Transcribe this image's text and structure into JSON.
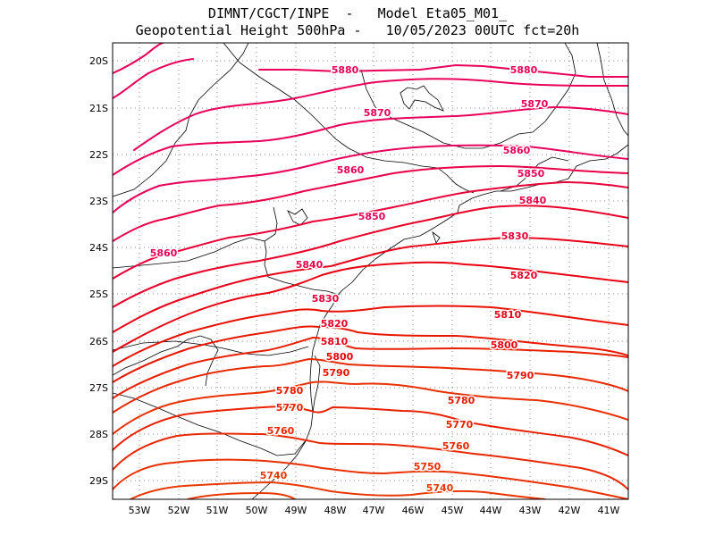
{
  "title": {
    "line1": "DIMNT/CGCT/INPE  -   Model Eta05_M01_",
    "line2": "Geopotential Height 500hPa -   10/05/2023 00UTC fct=20h"
  },
  "map": {
    "lon_labels": [
      "53W",
      "52W",
      "51W",
      "50W",
      "49W",
      "48W",
      "47W",
      "46W",
      "45W",
      "44W",
      "43W",
      "42W",
      "41W"
    ],
    "lat_labels": [
      "20S",
      "21S",
      "22S",
      "23S",
      "24S",
      "25S",
      "26S",
      "27S",
      "28S",
      "29S"
    ]
  },
  "contours": [
    {
      "value": "5880",
      "color": "#e8005a"
    },
    {
      "value": "5870",
      "color": "#e8005a"
    },
    {
      "value": "5860",
      "color": "#e8005a"
    },
    {
      "value": "5850",
      "color": "#e8005a"
    },
    {
      "value": "5840",
      "color": "#e80048"
    },
    {
      "value": "5830",
      "color": "#e80038"
    },
    {
      "value": "5820",
      "color": "#e80028"
    },
    {
      "value": "5810",
      "color": "#e80018"
    },
    {
      "value": "5800",
      "color": "#e80010"
    },
    {
      "value": "5790",
      "color": "#e81000"
    },
    {
      "value": "5780",
      "color": "#e81800"
    },
    {
      "value": "5770",
      "color": "#e82000"
    },
    {
      "value": "5760",
      "color": "#e82800"
    },
    {
      "value": "5750",
      "color": "#e83000"
    },
    {
      "value": "5740",
      "color": "#e83800"
    }
  ],
  "contour_labels": [
    {
      "text": "5880",
      "color": "#e8005a"
    },
    {
      "text": "5880",
      "color": "#e8005a"
    },
    {
      "text": "5870",
      "color": "#e8005a"
    },
    {
      "text": "5870",
      "color": "#e8005a"
    },
    {
      "text": "5860",
      "color": "#e8005a"
    },
    {
      "text": "5860",
      "color": "#e8005a"
    },
    {
      "text": "5860",
      "color": "#e8005a"
    },
    {
      "text": "5850",
      "color": "#e8005a"
    },
    {
      "text": "5850",
      "color": "#e8005a"
    },
    {
      "text": "5840",
      "color": "#e80048"
    },
    {
      "text": "5840",
      "color": "#e80048"
    },
    {
      "text": "5830",
      "color": "#e80038"
    },
    {
      "text": "5830",
      "color": "#e80038"
    },
    {
      "text": "5820",
      "color": "#e80028"
    },
    {
      "text": "5820",
      "color": "#e80028"
    },
    {
      "text": "5810",
      "color": "#e80018"
    },
    {
      "text": "5810",
      "color": "#e80018"
    },
    {
      "text": "5800",
      "color": "#e80010"
    },
    {
      "text": "5800",
      "color": "#e80010"
    },
    {
      "text": "5790",
      "color": "#e81000"
    },
    {
      "text": "5790",
      "color": "#e81000"
    },
    {
      "text": "5780",
      "color": "#e81800"
    },
    {
      "text": "5780",
      "color": "#e81800"
    },
    {
      "text": "5770",
      "color": "#e82000"
    },
    {
      "text": "5770",
      "color": "#e82000"
    },
    {
      "text": "5760",
      "color": "#e82800"
    },
    {
      "text": "5760",
      "color": "#e82800"
    },
    {
      "text": "5750",
      "color": "#e83000"
    },
    {
      "text": "5740",
      "color": "#e83800"
    },
    {
      "text": "5740",
      "color": "#e83800"
    }
  ],
  "colors": {
    "grid": "#888888",
    "coast": "#000000",
    "frame": "#000000"
  }
}
